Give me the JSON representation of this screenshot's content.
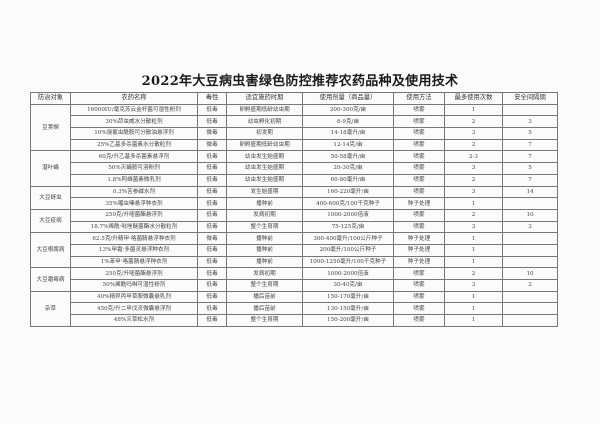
{
  "title": "2022年大豆病虫害绿色防控推荐农药品种及使用技术",
  "headers": [
    "防治对象",
    "农药名称",
    "毒性",
    "适宜施药时期",
    "使用剂量（商品量）",
    "使用方法",
    "最多使用次数",
    "安全间隔期"
  ],
  "groups": [
    {
      "target": "豆荚螟",
      "rows": [
        [
          "16000IU/毫克苏云金杆菌可湿性粉剂",
          "低毒",
          "卵孵盛期低龄幼虫期",
          "200-300克/亩",
          "喷雾",
          "1",
          ""
        ],
        [
          "30%茚虫威水分散粒剂",
          "低毒",
          "幼虫孵化初期",
          "6-9克/亩",
          "喷雾",
          "2",
          "3"
        ],
        [
          "10%溴氰虫酰胺可分散油悬浮剂",
          "微毒",
          "初发期",
          "14-18毫升/亩",
          "喷雾",
          "3",
          "5"
        ],
        [
          "25%乙基多杀菌素水分散粒剂",
          "微毒",
          "卵孵盛期低龄幼虫期",
          "12-14克/亩",
          "喷雾",
          "2",
          "7"
        ]
      ]
    },
    {
      "target": "潜叶蝇",
      "rows": [
        [
          "60克/升乙基多杀菌素悬浮剂",
          "低毒",
          "幼虫发生始盛期",
          "50-58毫升/亩",
          "喷雾",
          "2-3",
          "7"
        ],
        [
          "50%灭蝇胺可溶粉剂",
          "低毒",
          "幼虫发生始盛期",
          "20-30克/亩",
          "喷雾",
          "3",
          "5"
        ],
        [
          "1.8%阿维菌素微乳剂",
          "低毒",
          "幼虫发生始盛期",
          "60-80毫升/亩",
          "喷雾",
          "2",
          "7"
        ]
      ]
    },
    {
      "target": "大豆蚜虫",
      "rows": [
        [
          "0.3%苦参碱水剂",
          "低毒",
          "发生始盛期",
          "160-220毫升/亩",
          "喷雾",
          "3",
          "14"
        ],
        [
          "35%噻虫嗪悬浮种衣剂",
          "低毒",
          "播种前",
          "400-600克/100千克种子",
          "种子处理",
          "1",
          ""
        ]
      ]
    },
    {
      "target": "大豆疫病",
      "rows": [
        [
          "250克/升嘧菌酯悬浮剂",
          "低毒",
          "发病初期",
          "1000-2000倍液",
          "喷雾",
          "2",
          "10"
        ],
        [
          "18.7%烯酰·吡唑醚菌酯水分散粒剂",
          "低毒",
          "整个生育期",
          "75-125克/亩",
          "喷雾",
          "3",
          "3"
        ]
      ]
    },
    {
      "target": "大豆根腐病",
      "rows": [
        [
          "62.5克/升精甲·咯菌腈悬浮种衣剂",
          "微毒",
          "播种前",
          "300-400毫升/100公斤种子",
          "种子处理",
          "1",
          ""
        ],
        [
          "13%甲霜·多菌灵悬浮种衣剂",
          "低毒",
          "播种前",
          "200毫升/100公斤种子",
          "种子处理",
          "1",
          ""
        ],
        [
          "1%苯甲·咯菌腈悬浮种衣剂",
          "低毒",
          "播种前",
          "1000-1250毫升/100千克种子",
          "种子处理",
          "1",
          ""
        ]
      ]
    },
    {
      "target": "大豆霜霉病",
      "rows": [
        [
          "250克/升嘧菌酯悬浮剂",
          "低毒",
          "发病初期",
          "1000-2000倍液",
          "喷雾",
          "2",
          "10"
        ],
        [
          "50%烯酰吗啉可湿性粉剂",
          "低毒",
          "整个生育期",
          "30-40克/亩",
          "喷雾",
          "3",
          "2"
        ]
      ]
    },
    {
      "target": "杂草",
      "rows": [
        [
          "40%精异丙甲草胺微囊悬乳剂",
          "低毒",
          "播后苗前",
          "150-170毫升/亩",
          "喷雾",
          "1",
          ""
        ],
        [
          "450克/升二甲戊灵微囊悬浮剂",
          "低毒",
          "播后苗前",
          "130-150毫升/亩",
          "喷雾",
          "1",
          ""
        ],
        [
          "48%灭草松水剂",
          "低毒",
          "整个生育期",
          "150-200毫升/亩",
          "喷雾",
          "1",
          ""
        ]
      ]
    }
  ]
}
